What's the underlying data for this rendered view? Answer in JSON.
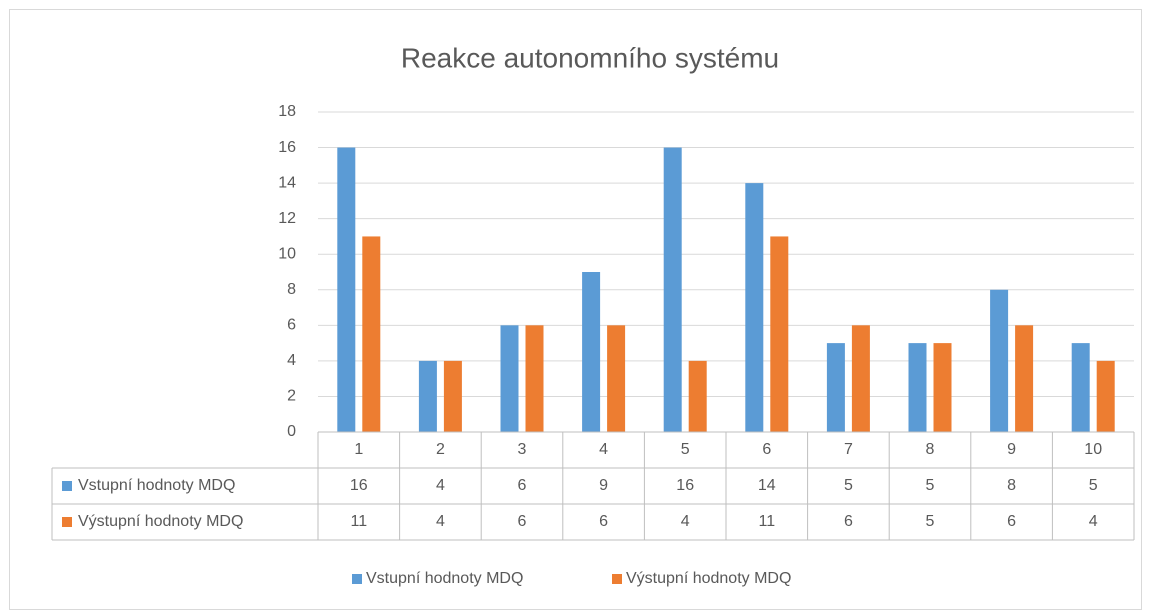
{
  "chart_data": {
    "type": "bar",
    "title": "Reakce autonomního systému",
    "categories": [
      "1",
      "2",
      "3",
      "4",
      "5",
      "6",
      "7",
      "8",
      "9",
      "10"
    ],
    "series": [
      {
        "name": "Vstupní hodnoty MDQ",
        "color": "#5b9bd5",
        "values": [
          16,
          4,
          6,
          9,
          16,
          14,
          5,
          5,
          8,
          5
        ]
      },
      {
        "name": "Výstupní hodnoty MDQ",
        "color": "#ed7d31",
        "values": [
          11,
          4,
          6,
          6,
          4,
          11,
          6,
          5,
          6,
          4
        ]
      }
    ],
    "ylim": [
      0,
      18
    ],
    "yticks": [
      0,
      2,
      4,
      6,
      8,
      10,
      12,
      14,
      16,
      18
    ],
    "grid": true,
    "legend": "bottom"
  }
}
